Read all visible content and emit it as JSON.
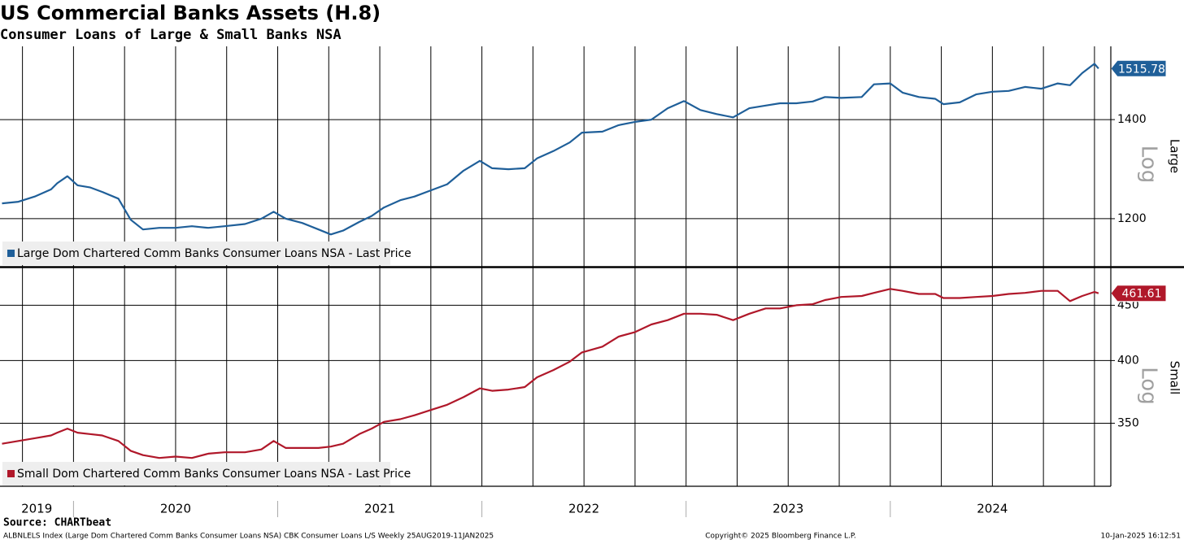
{
  "header": {
    "title": "US Commercial Banks Assets (H.8)",
    "subtitle": "Consumer Loans of Large & Small Banks NSA"
  },
  "footer": {
    "source": "Source: CHARTbeat",
    "description": "ALBNLELS Index (Large Dom Chartered Comm Banks Consumer Loans NSA) CBK Consumer Loans L/S  Weekly 25AUG2019-11JAN2025",
    "copyright": "Copyright© 2025 Bloomberg Finance L.P.",
    "timestamp": "10-Jan-2025 16:12:51"
  },
  "chart_data": [
    {
      "type": "line",
      "y_label": "Large",
      "y_scale_label": "Log",
      "log_y": true,
      "legend": "lower left",
      "grid": true,
      "xlim": [
        2019.64,
        2025.08
      ],
      "ylim": [
        1115,
        1569
      ],
      "yticks": [
        1200,
        1400
      ],
      "x": [
        2019.65,
        2019.73,
        2019.81,
        2019.89,
        2019.92,
        2019.97,
        2020.02,
        2020.08,
        2020.14,
        2020.22,
        2020.28,
        2020.34,
        2020.42,
        2020.5,
        2020.58,
        2020.66,
        2020.74,
        2020.84,
        2020.92,
        2020.98,
        2021.04,
        2021.12,
        2021.2,
        2021.26,
        2021.32,
        2021.4,
        2021.46,
        2021.52,
        2021.6,
        2021.67,
        2021.75,
        2021.83,
        2021.91,
        2021.99,
        2022.05,
        2022.13,
        2022.21,
        2022.27,
        2022.35,
        2022.43,
        2022.49,
        2022.59,
        2022.67,
        2022.75,
        2022.83,
        2022.91,
        2022.99,
        2023.07,
        2023.15,
        2023.23,
        2023.31,
        2023.39,
        2023.46,
        2023.54,
        2023.62,
        2023.68,
        2023.76,
        2023.86,
        2023.92,
        2024.0,
        2024.06,
        2024.14,
        2024.22,
        2024.26,
        2024.34,
        2024.42,
        2024.5,
        2024.58,
        2024.66,
        2024.74,
        2024.82,
        2024.88,
        2024.94,
        2025.0,
        2025.02
      ],
      "series": [
        {
          "name": "Large Dom Chartered Comm Banks Consumer Loans NSA - Last Price",
          "color": "#1f5f99",
          "values": [
            1229,
            1232,
            1242,
            1256,
            1268,
            1282,
            1264,
            1260,
            1251,
            1238,
            1198,
            1180,
            1183,
            1183,
            1186,
            1183,
            1186,
            1190,
            1200,
            1213,
            1200,
            1192,
            1180,
            1171,
            1178,
            1194,
            1205,
            1221,
            1235,
            1242,
            1254,
            1266,
            1293,
            1313,
            1298,
            1296,
            1298,
            1318,
            1333,
            1351,
            1372,
            1374,
            1388,
            1395,
            1400,
            1425,
            1441,
            1421,
            1412,
            1405,
            1425,
            1431,
            1436,
            1436,
            1440,
            1450,
            1448,
            1450,
            1479,
            1481,
            1460,
            1450,
            1446,
            1434,
            1438,
            1456,
            1462,
            1464,
            1473,
            1469,
            1481,
            1477,
            1505,
            1527,
            1515.78
          ]
        }
      ]
    },
    {
      "type": "line",
      "y_label": "Small",
      "y_scale_label": "Log",
      "log_y": true,
      "legend": "lower left",
      "grid": true,
      "xlim": [
        2019.64,
        2025.08
      ],
      "ylim": [
        306,
        486
      ],
      "yticks": [
        350,
        400,
        450
      ],
      "xticks": [
        {
          "value": 2019,
          "label": "2019"
        },
        {
          "value": 2020,
          "label": "2020"
        },
        {
          "value": 2021,
          "label": "2021"
        },
        {
          "value": 2022,
          "label": "2022"
        },
        {
          "value": 2023,
          "label": "2023"
        },
        {
          "value": 2024,
          "label": "2024"
        }
      ],
      "x": [
        2019.65,
        2019.73,
        2019.81,
        2019.89,
        2019.92,
        2019.97,
        2020.02,
        2020.08,
        2020.14,
        2020.22,
        2020.28,
        2020.34,
        2020.42,
        2020.5,
        2020.58,
        2020.66,
        2020.74,
        2020.84,
        2020.92,
        2020.98,
        2021.04,
        2021.12,
        2021.2,
        2021.26,
        2021.32,
        2021.4,
        2021.46,
        2021.52,
        2021.6,
        2021.67,
        2021.75,
        2021.83,
        2021.91,
        2021.99,
        2022.05,
        2022.13,
        2022.21,
        2022.27,
        2022.35,
        2022.43,
        2022.49,
        2022.59,
        2022.67,
        2022.75,
        2022.83,
        2022.91,
        2022.99,
        2023.07,
        2023.15,
        2023.23,
        2023.31,
        2023.39,
        2023.46,
        2023.54,
        2023.62,
        2023.68,
        2023.76,
        2023.86,
        2023.92,
        2024.0,
        2024.06,
        2024.14,
        2024.22,
        2024.26,
        2024.34,
        2024.42,
        2024.5,
        2024.58,
        2024.66,
        2024.74,
        2024.82,
        2024.88,
        2024.94,
        2025.0,
        2025.02
      ],
      "series": [
        {
          "name": "Small Dom Chartered Comm Banks Consumer Loans NSA - Last Price",
          "color": "#b0182a",
          "values": [
            335,
            337,
            339,
            341,
            343,
            346,
            343,
            342,
            341,
            337,
            330,
            327,
            325,
            326,
            325,
            328,
            329,
            329,
            331,
            337,
            332,
            332,
            332,
            333,
            335,
            342,
            346,
            351,
            353,
            356,
            360,
            364,
            370,
            377,
            375,
            376,
            378,
            386,
            392,
            399,
            407,
            412,
            421,
            425,
            432,
            436,
            442,
            442,
            441,
            436,
            442,
            447,
            447,
            450,
            451,
            455,
            458,
            459,
            462,
            466,
            464,
            461,
            461,
            457,
            457,
            458,
            459,
            461,
            462,
            464,
            464,
            454,
            459,
            463,
            461.61
          ]
        }
      ]
    }
  ]
}
